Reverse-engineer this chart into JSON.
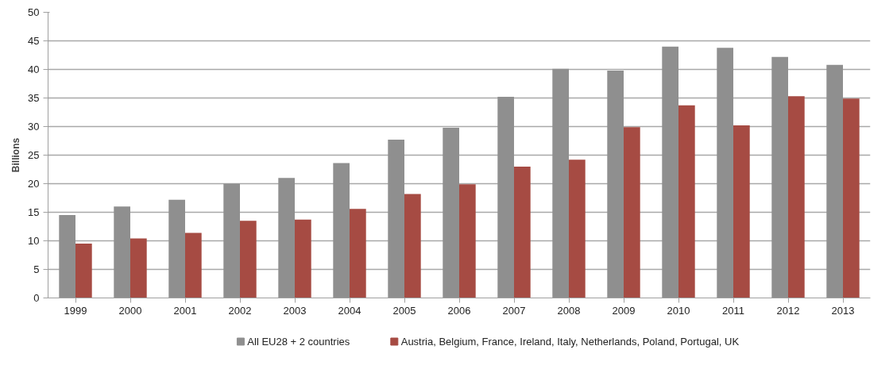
{
  "chart_data": {
    "type": "bar",
    "ylabel": "Billions",
    "categories": [
      "1999",
      "2000",
      "2001",
      "2002",
      "2003",
      "2004",
      "2005",
      "2006",
      "2007",
      "2008",
      "2009",
      "2010",
      "2011",
      "2012",
      "2013"
    ],
    "series": [
      {
        "name": "All EU28 + 2 countries",
        "color": "#8f8f8f",
        "values": [
          14.5,
          16,
          17.2,
          20,
          21,
          23.6,
          27.7,
          29.8,
          35.2,
          40.1,
          39.8,
          44,
          43.8,
          42.2,
          40.8
        ]
      },
      {
        "name": "Austria, Belgium, France, Ireland, Italy, Netherlands, Poland, Portugal, UK",
        "color": "#a64b43",
        "values": [
          9.5,
          10.4,
          11.4,
          13.5,
          13.7,
          15.6,
          18.2,
          19.9,
          23,
          24.2,
          29.9,
          33.7,
          30.2,
          35.3,
          34.9
        ]
      }
    ],
    "ylim": [
      0,
      50
    ],
    "yticks": [
      0,
      5,
      10,
      15,
      20,
      25,
      30,
      35,
      40,
      45,
      50
    ],
    "grid": "y",
    "legend": "bottom"
  }
}
